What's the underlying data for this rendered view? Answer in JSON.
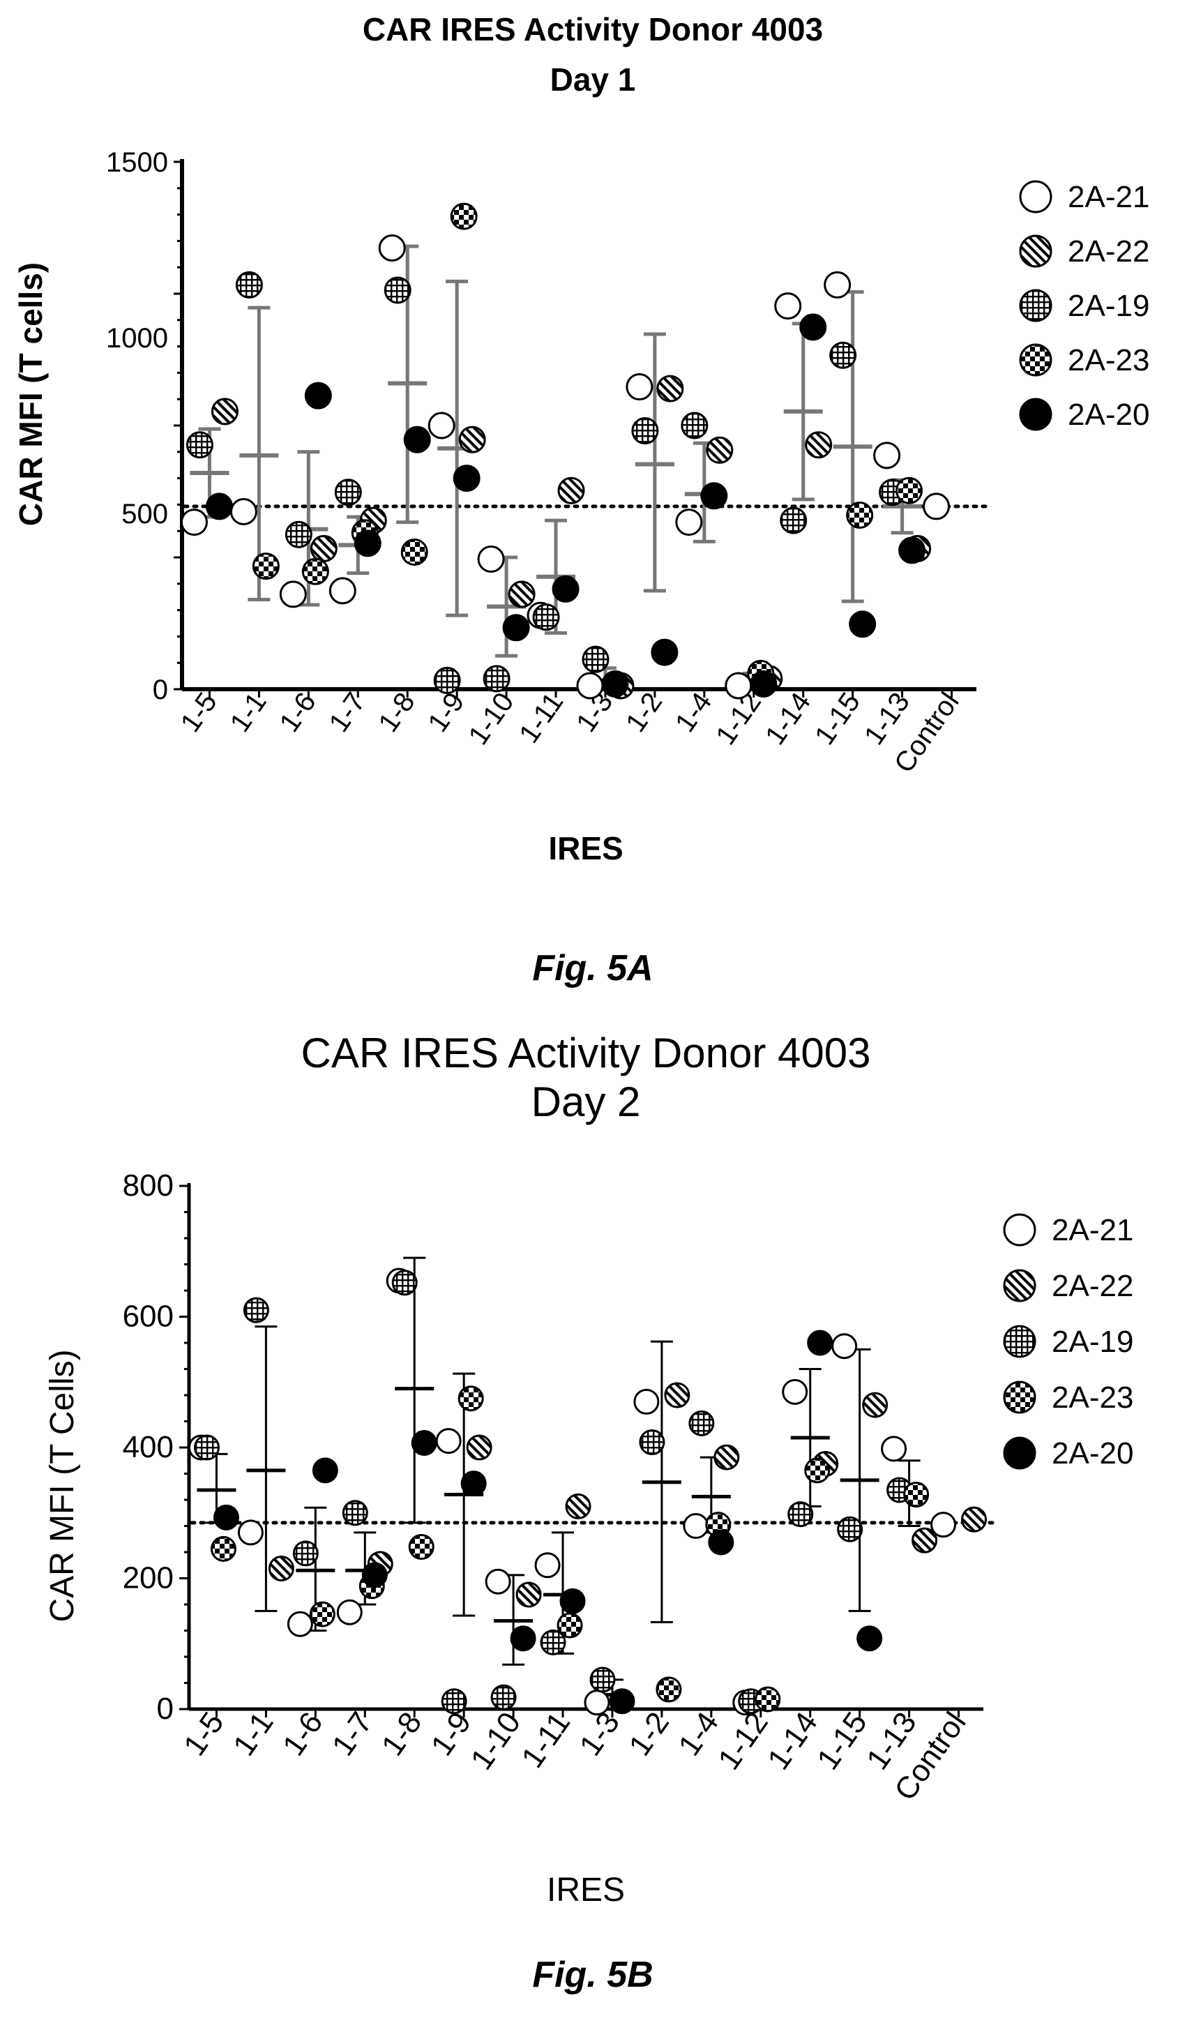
{
  "legend": [
    {
      "name": "2A-21",
      "pattern": "open"
    },
    {
      "name": "2A-22",
      "pattern": "hatch"
    },
    {
      "name": "2A-19",
      "pattern": "grid"
    },
    {
      "name": "2A-23",
      "pattern": "checker"
    },
    {
      "name": "2A-20",
      "pattern": "filled"
    }
  ],
  "chart_data": [
    {
      "type": "scatter",
      "title": "CAR IRES Activity Donor 4003",
      "subtitle": "Day 1",
      "xlabel": "IRES",
      "ylabel": "CAR MFI (T cells)",
      "figure_label": "Fig. 5A",
      "ylim": [
        0,
        1500
      ],
      "yticks": [
        "0",
        "500",
        "1000",
        "1500"
      ],
      "categories": [
        "1-5",
        "1-1",
        "1-6",
        "1-7",
        "1-8",
        "1-9",
        "1-10",
        "1-11",
        "1-3",
        "1-2",
        "1-4",
        "1-12",
        "1-14",
        "1-15",
        "1-13",
        "Control"
      ],
      "reference_line": 520,
      "series": [
        {
          "name": "2A-21",
          "values": [
            475,
            505,
            270,
            280,
            1255,
            750,
            370,
            210,
            10,
            860,
            475,
            10,
            1090,
            1150,
            665,
            520
          ]
        },
        {
          "name": "2A-22",
          "values": [
            790,
            null,
            400,
            480,
            null,
            710,
            270,
            565,
            10,
            855,
            680,
            30,
            695,
            null,
            400,
            null
          ]
        },
        {
          "name": "2A-19",
          "values": [
            695,
            1150,
            440,
            560,
            1135,
            25,
            30,
            205,
            85,
            735,
            750,
            null,
            480,
            950,
            560,
            null
          ]
        },
        {
          "name": "2A-23",
          "values": [
            null,
            350,
            335,
            445,
            390,
            1345,
            null,
            null,
            null,
            null,
            null,
            45,
            null,
            495,
            565,
            null
          ]
        },
        {
          "name": "2A-20",
          "values": [
            520,
            null,
            835,
            415,
            710,
            600,
            175,
            285,
            15,
            105,
            550,
            15,
            1030,
            185,
            395,
            null
          ]
        }
      ],
      "summary": [
        {
          "mean": 615,
          "lo": 490,
          "hi": 740
        },
        {
          "mean": 665,
          "lo": 255,
          "hi": 1085
        },
        {
          "mean": 455,
          "lo": 240,
          "hi": 675
        },
        {
          "mean": 410,
          "lo": 330,
          "hi": 490
        },
        {
          "mean": 870,
          "lo": 475,
          "hi": 1260
        },
        {
          "mean": 685,
          "lo": 210,
          "hi": 1160
        },
        {
          "mean": 235,
          "lo": 95,
          "hi": 375
        },
        {
          "mean": 320,
          "lo": 160,
          "hi": 480
        },
        {
          "mean": 25,
          "lo": 0,
          "hi": 60
        },
        {
          "mean": 640,
          "lo": 280,
          "hi": 1010
        },
        {
          "mean": 555,
          "lo": 420,
          "hi": 700
        },
        {
          "mean": 20,
          "lo": 0,
          "hi": 45
        },
        {
          "mean": 790,
          "lo": 540,
          "hi": 1040
        },
        {
          "mean": 690,
          "lo": 250,
          "hi": 1130
        },
        {
          "mean": 520,
          "lo": 445,
          "hi": 595
        },
        {
          "mean": null,
          "lo": null,
          "hi": null
        }
      ]
    },
    {
      "type": "scatter",
      "title": "CAR IRES Activity Donor 4003",
      "subtitle": "Day 2",
      "xlabel": "IRES",
      "ylabel": "CAR MFI (T Cells)",
      "figure_label": "Fig. 5B",
      "ylim": [
        0,
        800
      ],
      "yticks": [
        "0",
        "200",
        "400",
        "600",
        "800"
      ],
      "categories": [
        "1-5",
        "1-1",
        "1-6",
        "1-7",
        "1-8",
        "1-9",
        "1-10",
        "1-11",
        "1-3",
        "1-2",
        "1-4",
        "1-12",
        "1-14",
        "1-15",
        "1-13",
        "Control"
      ],
      "reference_line": 285,
      "series": [
        {
          "name": "2A-21",
          "values": [
            400,
            270,
            130,
            148,
            655,
            410,
            195,
            220,
            10,
            470,
            280,
            10,
            485,
            555,
            398,
            282
          ]
        },
        {
          "name": "2A-22",
          "values": [
            null,
            215,
            null,
            222,
            null,
            400,
            175,
            310,
            null,
            480,
            385,
            null,
            375,
            465,
            258,
            290
          ]
        },
        {
          "name": "2A-19",
          "values": [
            400,
            610,
            238,
            300,
            652,
            12,
            18,
            102,
            45,
            408,
            437,
            12,
            298,
            275,
            335,
            null
          ]
        },
        {
          "name": "2A-23",
          "values": [
            245,
            null,
            145,
            188,
            248,
            475,
            null,
            128,
            null,
            30,
            282,
            15,
            365,
            null,
            328,
            null
          ]
        },
        {
          "name": "2A-20",
          "values": [
            293,
            null,
            365,
            205,
            407,
            345,
            108,
            165,
            12,
            null,
            255,
            null,
            560,
            108,
            null,
            null
          ]
        }
      ],
      "summary": [
        {
          "mean": 335,
          "lo": 285,
          "hi": 390
        },
        {
          "mean": 365,
          "lo": 150,
          "hi": 585
        },
        {
          "mean": 212,
          "lo": 120,
          "hi": 308
        },
        {
          "mean": 212,
          "lo": 160,
          "hi": 270
        },
        {
          "mean": 490,
          "lo": 285,
          "hi": 690
        },
        {
          "mean": 328,
          "lo": 143,
          "hi": 513
        },
        {
          "mean": 135,
          "lo": 68,
          "hi": 205
        },
        {
          "mean": 175,
          "lo": 85,
          "hi": 270
        },
        {
          "mean": 22,
          "lo": 0,
          "hi": 45
        },
        {
          "mean": 347,
          "lo": 133,
          "hi": 562
        },
        {
          "mean": 325,
          "lo": 270,
          "hi": 385
        },
        {
          "mean": 12,
          "lo": 5,
          "hi": 18
        },
        {
          "mean": 415,
          "lo": 310,
          "hi": 520
        },
        {
          "mean": 350,
          "lo": 150,
          "hi": 550
        },
        {
          "mean": 330,
          "lo": 280,
          "hi": 380
        },
        {
          "mean": null,
          "lo": null,
          "hi": null
        }
      ]
    }
  ]
}
